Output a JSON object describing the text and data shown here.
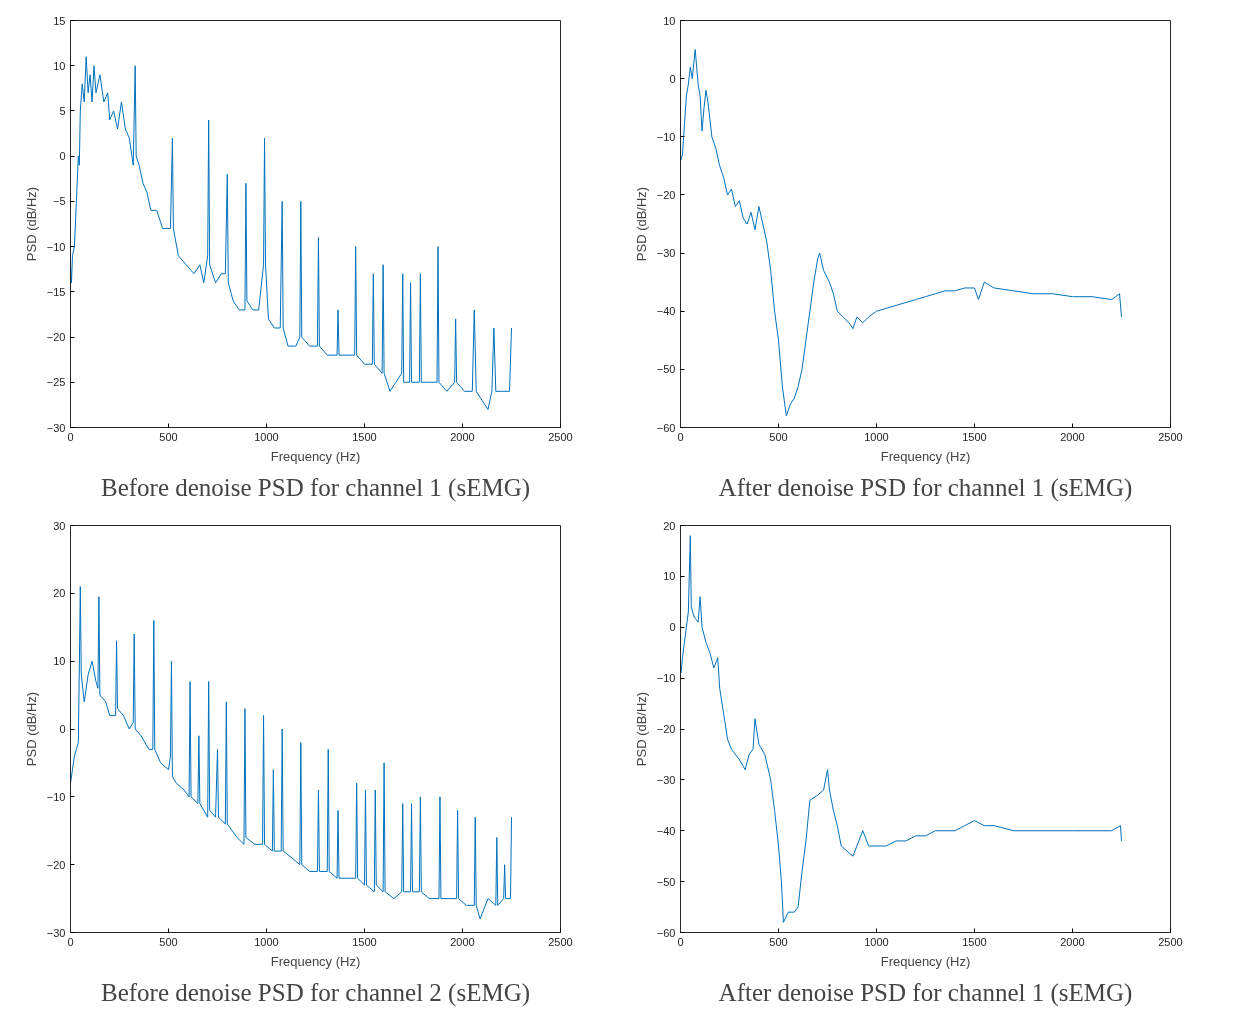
{
  "chart_data": [
    {
      "type": "line",
      "xlabel": "Frequency (Hz)",
      "ylabel": "PSD (dB/Hz)",
      "xlim": [
        0,
        2500
      ],
      "xticks": [
        0,
        500,
        1000,
        1500,
        2000,
        2500
      ],
      "ylim": [
        -30,
        15
      ],
      "yticks": [
        -30,
        -25,
        -20,
        -15,
        -10,
        -5,
        0,
        5,
        10,
        15
      ],
      "grid": false,
      "annotations": [
        "Before denoise PSD for channel 1 (sEMG)"
      ],
      "series": [
        {
          "color": "#0072bd",
          "x": [
            0,
            5,
            10,
            20,
            30,
            40,
            45,
            50,
            60,
            70,
            80,
            90,
            100,
            110,
            120,
            130,
            150,
            170,
            190,
            200,
            220,
            240,
            260,
            280,
            300,
            320,
            330,
            335,
            350,
            370,
            390,
            410,
            440,
            470,
            510,
            520,
            525,
            550,
            590,
            630,
            660,
            680,
            700,
            705,
            710,
            740,
            770,
            790,
            800,
            805,
            830,
            860,
            890,
            895,
            900,
            930,
            960,
            985,
            990,
            995,
            1010,
            1040,
            1070,
            1080,
            1085,
            1110,
            1150,
            1170,
            1175,
            1180,
            1220,
            1260,
            1265,
            1270,
            1310,
            1360,
            1365,
            1370,
            1410,
            1450,
            1455,
            1460,
            1500,
            1540,
            1545,
            1550,
            1590,
            1595,
            1600,
            1630,
            1660,
            1690,
            1695,
            1700,
            1730,
            1735,
            1740,
            1780,
            1785,
            1790,
            1830,
            1870,
            1875,
            1880,
            1920,
            1960,
            1965,
            1970,
            2010,
            2050,
            2060,
            2070,
            2100,
            2130,
            2150,
            2160,
            2170,
            2200,
            2240,
            2250
          ],
          "values": [
            -12,
            -14,
            -11,
            -10,
            -5,
            0,
            -1,
            5,
            8,
            6,
            11,
            7,
            9,
            6,
            10,
            7,
            9,
            6,
            7,
            4,
            5,
            3,
            6,
            3,
            2,
            -1,
            10,
            0,
            -1,
            -3,
            -4,
            -6,
            -6,
            -8,
            -8,
            2,
            -8,
            -11,
            -12,
            -13,
            -12,
            -14,
            -11,
            4,
            -12,
            -14,
            -13,
            -13,
            -2,
            -14,
            -16,
            -17,
            -17,
            -3,
            -16,
            -17,
            -17,
            -12,
            2,
            -12,
            -18,
            -19,
            -19,
            -5,
            -19,
            -21,
            -21,
            -20,
            -5,
            -20,
            -21,
            -21,
            -9,
            -21,
            -22,
            -22,
            -17,
            -22,
            -22,
            -22,
            -10,
            -22,
            -23,
            -23,
            -13,
            -23,
            -24,
            -12,
            -24,
            -26,
            -25,
            -24,
            -13,
            -25,
            -25,
            -14,
            -25,
            -25,
            -13,
            -25,
            -25,
            -25,
            -10,
            -25,
            -26,
            -25,
            -18,
            -25,
            -26,
            -26,
            -17,
            -26,
            -27,
            -28,
            -26,
            -19,
            -26,
            -26,
            -26,
            -19
          ]
        }
      ]
    },
    {
      "type": "line",
      "xlabel": "Frequency (Hz)",
      "ylabel": "PSD (dB/Hz)",
      "xlim": [
        0,
        2500
      ],
      "xticks": [
        0,
        500,
        1000,
        1500,
        2000,
        2500
      ],
      "ylim": [
        -60,
        10
      ],
      "yticks": [
        -60,
        -50,
        -40,
        -30,
        -20,
        -10,
        0,
        10
      ],
      "grid": false,
      "annotations": [
        "After denoise PSD for channel 1 (sEMG)"
      ],
      "series": [
        {
          "color": "#0072bd",
          "x": [
            2,
            10,
            20,
            30,
            40,
            50,
            60,
            75,
            90,
            100,
            110,
            120,
            130,
            140,
            160,
            180,
            200,
            220,
            240,
            260,
            280,
            300,
            320,
            340,
            360,
            380,
            400,
            420,
            440,
            460,
            480,
            500,
            520,
            540,
            560,
            580,
            600,
            620,
            640,
            660,
            680,
            700,
            710,
            730,
            760,
            780,
            800,
            830,
            860,
            880,
            900,
            930,
            960,
            1000,
            1050,
            1100,
            1150,
            1200,
            1250,
            1300,
            1350,
            1400,
            1450,
            1500,
            1520,
            1550,
            1600,
            1700,
            1800,
            1900,
            2000,
            2100,
            2200,
            2240,
            2250
          ],
          "values": [
            -14,
            -13,
            -8,
            -3,
            -1,
            2,
            0,
            5,
            -1,
            -3,
            -9,
            -5,
            -2,
            -4,
            -10,
            -12,
            -15,
            -17,
            -20,
            -19,
            -22,
            -21,
            -24,
            -25,
            -23,
            -26,
            -22,
            -25,
            -28,
            -33,
            -40,
            -45,
            -53,
            -58,
            -56,
            -55,
            -53,
            -50,
            -45,
            -40,
            -35,
            -31,
            -30,
            -33,
            -35,
            -37,
            -40,
            -41,
            -42,
            -43,
            -41,
            -42,
            -41,
            -40,
            -39.5,
            -39,
            -38.5,
            -38,
            -37.5,
            -37,
            -36.5,
            -36.5,
            -36,
            -36,
            -38,
            -35,
            -36,
            -36.5,
            -37,
            -37,
            -37.5,
            -37.5,
            -38,
            -37,
            -41
          ]
        }
      ]
    },
    {
      "type": "line",
      "xlabel": "Frequency (Hz)",
      "ylabel": "PSD (dB/Hz)",
      "xlim": [
        0,
        2500
      ],
      "xticks": [
        0,
        500,
        1000,
        1500,
        2000,
        2500
      ],
      "ylim": [
        -30,
        30
      ],
      "yticks": [
        -30,
        -20,
        -10,
        0,
        10,
        20,
        30
      ],
      "grid": false,
      "annotations": [
        "Before denoise PSD for channel 2 (sEMG)"
      ],
      "series": [
        {
          "color": "#0072bd",
          "x": [
            0,
            10,
            20,
            30,
            40,
            45,
            50,
            55,
            70,
            90,
            110,
            130,
            140,
            145,
            150,
            180,
            200,
            230,
            235,
            240,
            270,
            300,
            320,
            325,
            330,
            360,
            400,
            420,
            425,
            430,
            460,
            500,
            510,
            515,
            520,
            540,
            580,
            605,
            610,
            615,
            650,
            655,
            660,
            700,
            705,
            710,
            740,
            750,
            755,
            790,
            795,
            800,
            850,
            885,
            890,
            895,
            940,
            980,
            985,
            990,
            1030,
            1035,
            1040,
            1075,
            1080,
            1085,
            1130,
            1170,
            1175,
            1180,
            1220,
            1260,
            1265,
            1270,
            1310,
            1315,
            1320,
            1360,
            1365,
            1370,
            1410,
            1455,
            1460,
            1465,
            1500,
            1505,
            1510,
            1550,
            1555,
            1560,
            1595,
            1600,
            1605,
            1650,
            1690,
            1695,
            1700,
            1735,
            1740,
            1745,
            1780,
            1785,
            1790,
            1830,
            1880,
            1885,
            1890,
            1930,
            1970,
            1975,
            1980,
            2020,
            2060,
            2065,
            2070,
            2090,
            2130,
            2170,
            2175,
            2180,
            2210,
            2215,
            2220,
            2245,
            2250
          ],
          "values": [
            -8,
            -6,
            -4,
            -3,
            -2,
            9,
            21,
            8,
            4,
            8,
            10,
            7,
            6,
            19.5,
            5,
            4,
            2,
            2,
            13,
            3,
            2,
            0,
            1,
            14,
            0,
            -1,
            -3,
            -3,
            16,
            -3,
            -5,
            -6,
            -4,
            10,
            -7,
            -8,
            -9,
            -10,
            7,
            -10,
            -11,
            -1,
            -11,
            -13,
            7,
            -12,
            -13,
            -3,
            -13,
            -14,
            4,
            -14,
            -16,
            -17,
            3,
            -16,
            -17,
            -17,
            2,
            -17,
            -18,
            -6,
            -18,
            -18,
            0,
            -18,
            -19,
            -20,
            -2,
            -20,
            -21,
            -21,
            -9,
            -21,
            -21,
            -3,
            -21,
            -22,
            -12,
            -22,
            -22,
            -22,
            -8,
            -22,
            -23,
            -9,
            -23,
            -24,
            -9,
            -23,
            -24,
            -5,
            -24,
            -25,
            -24,
            -11,
            -24,
            -24,
            -11,
            -24,
            -24,
            -10,
            -24,
            -25,
            -25,
            -10,
            -25,
            -25,
            -25,
            -12,
            -25,
            -26,
            -26,
            -13,
            -26,
            -28,
            -25,
            -26,
            -16,
            -26,
            -25,
            -20,
            -25,
            -25,
            -13
          ]
        }
      ]
    },
    {
      "type": "line",
      "xlabel": "Frequency (Hz)",
      "ylabel": "PSD (dB/Hz)",
      "xlim": [
        0,
        2500
      ],
      "xticks": [
        0,
        500,
        1000,
        1500,
        2000,
        2500
      ],
      "ylim": [
        -60,
        20
      ],
      "yticks": [
        -60,
        -50,
        -40,
        -30,
        -20,
        -10,
        0,
        10,
        20
      ],
      "grid": false,
      "annotations": [
        "After denoise PSD for channel 1 (sEMG)"
      ],
      "series": [
        {
          "color": "#0072bd",
          "x": [
            3,
            10,
            20,
            30,
            40,
            50,
            55,
            70,
            90,
            100,
            110,
            130,
            150,
            170,
            190,
            200,
            220,
            240,
            260,
            300,
            330,
            350,
            370,
            380,
            400,
            430,
            460,
            480,
            500,
            515,
            525,
            550,
            580,
            600,
            620,
            640,
            660,
            700,
            730,
            750,
            760,
            780,
            800,
            820,
            850,
            880,
            900,
            930,
            960,
            1000,
            1050,
            1100,
            1150,
            1200,
            1250,
            1300,
            1350,
            1400,
            1450,
            1500,
            1550,
            1600,
            1700,
            1800,
            1900,
            2000,
            2100,
            2200,
            2245,
            2250
          ],
          "values": [
            -9,
            -6,
            -3,
            0,
            3,
            18,
            4,
            2,
            1,
            6,
            0,
            -3,
            -5,
            -8,
            -6,
            -12,
            -17,
            -22,
            -24,
            -26,
            -28,
            -25,
            -24,
            -18,
            -23,
            -25,
            -30,
            -36,
            -43,
            -50,
            -58,
            -56,
            -56,
            -55,
            -48,
            -42,
            -34,
            -33,
            -32,
            -28,
            -32,
            -36,
            -39,
            -43,
            -44,
            -45,
            -43,
            -40,
            -43,
            -43,
            -43,
            -42,
            -42,
            -41,
            -41,
            -40,
            -40,
            -40,
            -39,
            -38,
            -39,
            -39,
            -40,
            -40,
            -40,
            -40,
            -40,
            -40,
            -39,
            -42
          ]
        }
      ]
    }
  ]
}
